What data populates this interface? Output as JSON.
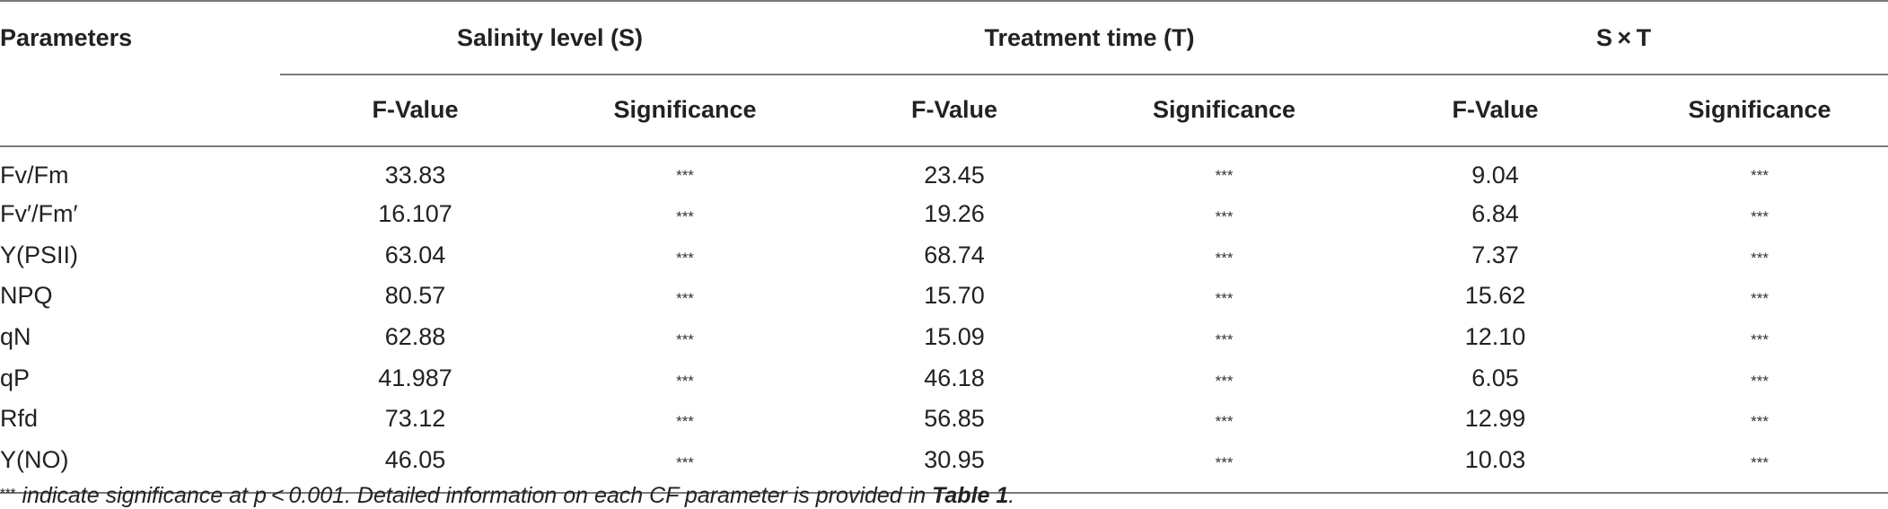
{
  "table": {
    "header": {
      "parameters": "Parameters",
      "groups": [
        "Salinity level (S)",
        "Treatment time (T)",
        "S × T"
      ],
      "sub_headers": [
        "F-Value",
        "Significance"
      ]
    },
    "rows": [
      {
        "param": "Fv/Fm",
        "s_f": "33.83",
        "s_sig": "***",
        "t_f": "23.45",
        "t_sig": "***",
        "st_f": "9.04",
        "st_sig": "***"
      },
      {
        "param": "Fv′/Fm′",
        "s_f": "16.107",
        "s_sig": "***",
        "t_f": "19.26",
        "t_sig": "***",
        "st_f": "6.84",
        "st_sig": "***"
      },
      {
        "param": "Y(PSII)",
        "s_f": "63.04",
        "s_sig": "***",
        "t_f": "68.74",
        "t_sig": "***",
        "st_f": "7.37",
        "st_sig": "***"
      },
      {
        "param": "NPQ",
        "s_f": "80.57",
        "s_sig": "***",
        "t_f": "15.70",
        "t_sig": "***",
        "st_f": "15.62",
        "st_sig": "***"
      },
      {
        "param": "qN",
        "s_f": "62.88",
        "s_sig": "***",
        "t_f": "15.09",
        "t_sig": "***",
        "st_f": "12.10",
        "st_sig": "***"
      },
      {
        "param": "qP",
        "s_f": "41.987",
        "s_sig": "***",
        "t_f": "46.18",
        "t_sig": "***",
        "st_f": "6.05",
        "st_sig": "***"
      },
      {
        "param": "Rfd",
        "s_f": "73.12",
        "s_sig": "***",
        "t_f": "56.85",
        "t_sig": "***",
        "st_f": "12.99",
        "st_sig": "***"
      },
      {
        "param": "Y(NO)",
        "s_f": "46.05",
        "s_sig": "***",
        "t_f": "30.95",
        "t_sig": "***",
        "st_f": "10.03",
        "st_sig": "***"
      }
    ]
  },
  "footnote": {
    "marker": "***",
    "text_part1": " indicate significance at p < 0.001. Detailed information on each CF parameter is provided in ",
    "table_ref": "Table 1",
    "text_part2": "."
  }
}
